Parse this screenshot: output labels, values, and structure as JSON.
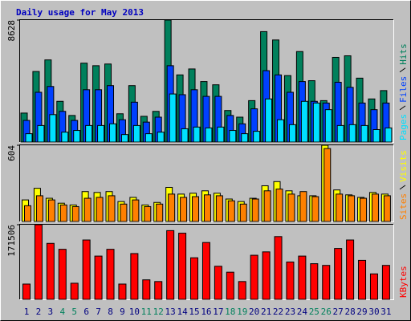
{
  "title": "Daily usage for May 2013",
  "chart_data": [
    {
      "type": "bar",
      "ylim": [
        0,
        8628
      ],
      "yticks": [
        8628
      ],
      "series": [
        {
          "name": "Pages",
          "color": "#00e0ff",
          "values": [
            590,
            1170,
            1940,
            700,
            820,
            1170,
            1170,
            1290,
            530,
            1170,
            590,
            700,
            3400,
            940,
            1060,
            1000,
            1060,
            820,
            590,
            760,
            3050,
            1580,
            1230,
            2880,
            2760,
            2290,
            1170,
            1230,
            1170,
            880,
            1000
          ]
        },
        {
          "name": "Files",
          "color": "#0040ff",
          "values": [
            1530,
            3520,
            3930,
            2170,
            1530,
            3700,
            3700,
            3990,
            1580,
            2820,
            1410,
            1760,
            5400,
            3350,
            3700,
            3230,
            3230,
            1880,
            1290,
            2350,
            5050,
            4750,
            3520,
            4280,
            2880,
            2760,
            4230,
            3870,
            2760,
            2290,
            2760
          ]
        },
        {
          "name": "Hits",
          "color": "#00805c",
          "values": [
            2050,
            4990,
            5810,
            2880,
            1880,
            5580,
            5400,
            5520,
            2000,
            3990,
            1820,
            2170,
            8628,
            4750,
            5170,
            4280,
            4050,
            2230,
            1760,
            2930,
            7810,
            7220,
            4700,
            6400,
            4340,
            2930,
            5990,
            6100,
            4520,
            3050,
            3640
          ]
        }
      ]
    },
    {
      "type": "bar",
      "ylim": [
        0,
        604
      ],
      "yticks": [
        604
      ],
      "series": [
        {
          "name": "Sites",
          "color": "#ff8000",
          "values": [
            125,
            204,
            171,
            131,
            118,
            184,
            191,
            204,
            138,
            171,
            118,
            138,
            217,
            191,
            197,
            211,
            204,
            164,
            138,
            178,
            243,
            257,
            217,
            237,
            197,
            578,
            217,
            204,
            184,
            217,
            204
          ]
        },
        {
          "name": "Visits",
          "color": "#ffff00",
          "values": [
            171,
            263,
            184,
            145,
            131,
            237,
            230,
            237,
            158,
            191,
            131,
            151,
            270,
            217,
            224,
            243,
            224,
            178,
            158,
            184,
            283,
            316,
            243,
            204,
            204,
            604,
            250,
            211,
            191,
            230,
            217
          ]
        }
      ]
    },
    {
      "type": "bar",
      "ylim": [
        0,
        171506
      ],
      "yticks": [
        171506
      ],
      "categories": [
        "1",
        "2",
        "3",
        "4",
        "5",
        "6",
        "7",
        "8",
        "9",
        "10",
        "11",
        "12",
        "13",
        "14",
        "15",
        "16",
        "17",
        "18",
        "19",
        "20",
        "21",
        "22",
        "23",
        "24",
        "25",
        "26",
        "27",
        "28",
        "29",
        "30",
        "31"
      ],
      "category_colors": [
        "#000080",
        "#000080",
        "#000080",
        "#00805c",
        "#00805c",
        "#000080",
        "#000080",
        "#000080",
        "#000080",
        "#000080",
        "#00805c",
        "#00805c",
        "#000080",
        "#000080",
        "#000080",
        "#000080",
        "#000080",
        "#00805c",
        "#00805c",
        "#000080",
        "#000080",
        "#000080",
        "#000080",
        "#000080",
        "#00805c",
        "#00805c",
        "#000080",
        "#000080",
        "#000080",
        "#000080",
        "#000080"
      ],
      "series": [
        {
          "name": "KBytes",
          "color": "#ff0000",
          "values": [
            35100,
            171506,
            128600,
            115000,
            37000,
            136400,
            99400,
            115000,
            35100,
            105200,
            44800,
            40900,
            157900,
            152000,
            95500,
            130600,
            76000,
            62400,
            40900,
            101300,
            109100,
            144200,
            85800,
            99400,
            81900,
            78000,
            116900,
            136400,
            89600,
            58500,
            78000
          ]
        }
      ]
    }
  ]
}
